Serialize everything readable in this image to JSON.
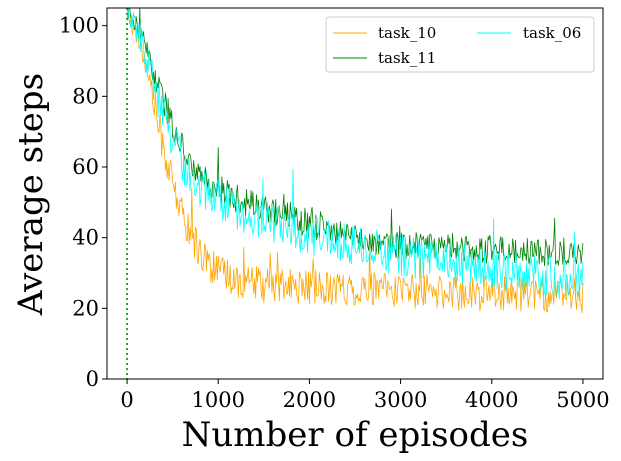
{
  "chart_data": {
    "type": "line",
    "xlabel": "Number of episodes",
    "ylabel": "Average steps",
    "xlim": [
      -220,
      5220
    ],
    "ylim": [
      0,
      105
    ],
    "x_ticks": [
      0,
      1000,
      2000,
      3000,
      4000,
      5000
    ],
    "y_ticks": [
      0,
      20,
      40,
      60,
      80,
      100
    ],
    "grid": false,
    "legend_placement": "top-right",
    "legend_columns": 2,
    "episode_step": 10,
    "vertical_reference_line": {
      "x": 0,
      "color": "#2ca02c",
      "style": "dotted"
    },
    "series": [
      {
        "name": "task_10",
        "color": "#ffa500",
        "noise_amplitude": 5,
        "points": [
          [
            0,
            104
          ],
          [
            100,
            98
          ],
          [
            200,
            90
          ],
          [
            300,
            78
          ],
          [
            400,
            65
          ],
          [
            500,
            55
          ],
          [
            600,
            47
          ],
          [
            700,
            41
          ],
          [
            800,
            36
          ],
          [
            900,
            33
          ],
          [
            1000,
            30
          ],
          [
            1200,
            28
          ],
          [
            1500,
            26.5
          ],
          [
            2000,
            26
          ],
          [
            2500,
            25.5
          ],
          [
            3000,
            25
          ],
          [
            3500,
            24.5
          ],
          [
            4000,
            24
          ],
          [
            4500,
            24
          ],
          [
            5000,
            23.5
          ]
        ]
      },
      {
        "name": "task_11",
        "color": "#008000",
        "noise_amplitude": 4,
        "points": [
          [
            0,
            105
          ],
          [
            100,
            100
          ],
          [
            200,
            94
          ],
          [
            300,
            86
          ],
          [
            400,
            79
          ],
          [
            500,
            72
          ],
          [
            600,
            66
          ],
          [
            700,
            62
          ],
          [
            800,
            58
          ],
          [
            900,
            56
          ],
          [
            1000,
            54
          ],
          [
            1200,
            51
          ],
          [
            1500,
            48
          ],
          [
            2000,
            44
          ],
          [
            2500,
            40
          ],
          [
            3000,
            38
          ],
          [
            3500,
            37
          ],
          [
            4000,
            36.5
          ],
          [
            4500,
            36
          ],
          [
            5000,
            36
          ]
        ]
      },
      {
        "name": "task_06",
        "color": "#00ffff",
        "noise_amplitude": 6,
        "points": [
          [
            0,
            104
          ],
          [
            100,
            99
          ],
          [
            200,
            92
          ],
          [
            300,
            83
          ],
          [
            400,
            75
          ],
          [
            500,
            68
          ],
          [
            600,
            62
          ],
          [
            700,
            58
          ],
          [
            800,
            55
          ],
          [
            900,
            53
          ],
          [
            1000,
            51
          ],
          [
            1200,
            48
          ],
          [
            1500,
            45
          ],
          [
            2000,
            41
          ],
          [
            2500,
            38
          ],
          [
            3000,
            35
          ],
          [
            3500,
            33
          ],
          [
            4000,
            31
          ],
          [
            4500,
            29
          ],
          [
            5000,
            28
          ]
        ]
      }
    ]
  }
}
